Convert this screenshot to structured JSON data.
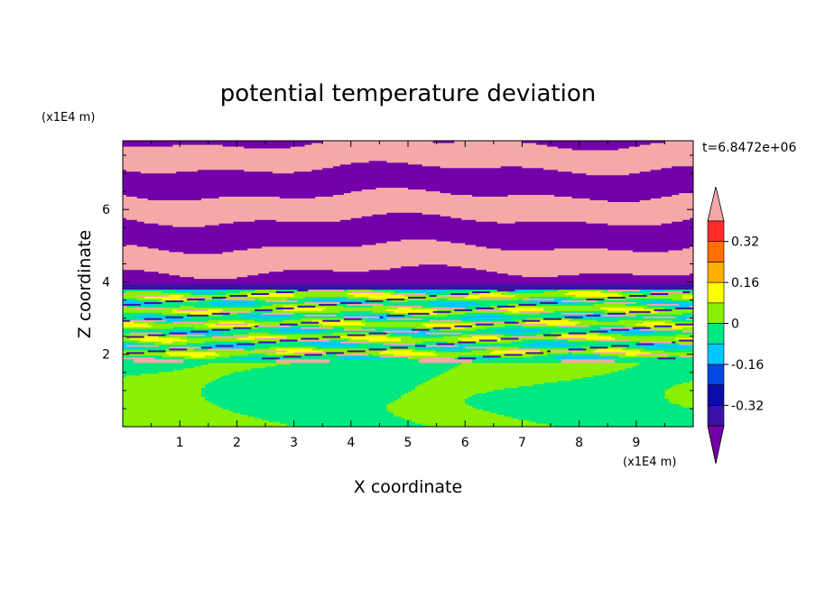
{
  "chart_data": {
    "type": "heatmap",
    "title": "potential temperature deviation",
    "time_label": "t=6.8472e+06",
    "xlabel": "X coordinate",
    "ylabel": "Z coordinate",
    "x_unit": "(x1E4 m)",
    "y_unit": "(x1E4 m)",
    "xlim": [
      0,
      10
    ],
    "ylim": [
      0,
      7.9
    ],
    "x_ticks": [
      "1",
      "2",
      "3",
      "4",
      "5",
      "6",
      "7",
      "8",
      "9"
    ],
    "y_ticks": [
      "2",
      "4",
      "6"
    ],
    "colorbar": {
      "levels": [
        -0.48,
        -0.4,
        -0.32,
        -0.24,
        -0.16,
        -0.08,
        0,
        0.08,
        0.16,
        0.24,
        0.32,
        0.4
      ],
      "colors": [
        "#7300a8",
        "#3b12a6",
        "#0c0ca8",
        "#0048e0",
        "#00c8ff",
        "#00e882",
        "#88f000",
        "#ffff00",
        "#ffb000",
        "#ff7000",
        "#ff2a2a",
        "#f5a8a8"
      ],
      "tick_labels": [
        "0.32",
        "0.16",
        "0",
        "-0.16",
        "-0.32"
      ],
      "extend": "both"
    },
    "field_summary": {
      "upper_region": "alternating purple and pink layers above z≈4",
      "transition": "mixed colors between z≈1.9 and z≈4",
      "lower_region": "green mix below z≈1.9"
    }
  }
}
